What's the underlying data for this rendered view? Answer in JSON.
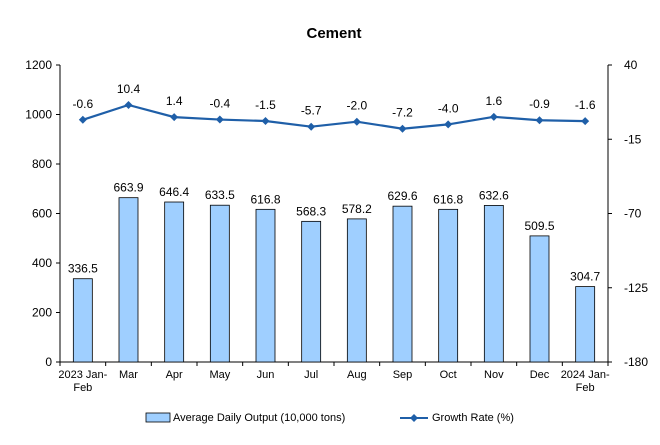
{
  "chart_data": {
    "type": "bar+line",
    "title": "Cement",
    "categories": [
      [
        "2023 Jan-",
        "Feb"
      ],
      [
        "Mar"
      ],
      [
        "Apr"
      ],
      [
        "May"
      ],
      [
        "Jun"
      ],
      [
        "Jul"
      ],
      [
        "Aug"
      ],
      [
        "Sep"
      ],
      [
        "Oct"
      ],
      [
        "Nov"
      ],
      [
        "Dec"
      ],
      [
        "2024 Jan-",
        "Feb"
      ]
    ],
    "series": [
      {
        "name": "Average Daily Output (10,000 tons)",
        "type": "bar",
        "axis": "left",
        "values": [
          336.5,
          663.9,
          646.4,
          633.5,
          616.8,
          568.3,
          578.2,
          629.6,
          616.8,
          632.6,
          509.5,
          304.7
        ],
        "labels": [
          "336.5",
          "663.9",
          "646.4",
          "633.5",
          "616.8",
          "568.3",
          "578.2",
          "629.6",
          "616.8",
          "632.6",
          "509.5",
          "304.7"
        ],
        "fill": "#9fcfff",
        "stroke": "#000000"
      },
      {
        "name": "Growth Rate (%)",
        "type": "line",
        "axis": "right",
        "values": [
          -0.6,
          10.4,
          1.4,
          -0.4,
          -1.5,
          -5.7,
          -2.0,
          -7.2,
          -4.0,
          1.6,
          -0.9,
          -1.6
        ],
        "labels": [
          "-0.6",
          "10.4",
          "1.4",
          "-0.4",
          "-1.5",
          "-5.7",
          "-2.0",
          "-7.2",
          "-4.0",
          "1.6",
          "-0.9",
          "-1.6"
        ],
        "color": "#1f5fa8"
      }
    ],
    "y_left": {
      "min": 0,
      "max": 1200,
      "ticks": [
        "0",
        "200",
        "400",
        "600",
        "800",
        "1000",
        "1200"
      ]
    },
    "y_right": {
      "min": -180,
      "max": 40,
      "ticks": [
        "-180",
        "-125",
        "-70",
        "-15",
        "40"
      ]
    },
    "grid": false,
    "legend": "bottom"
  }
}
